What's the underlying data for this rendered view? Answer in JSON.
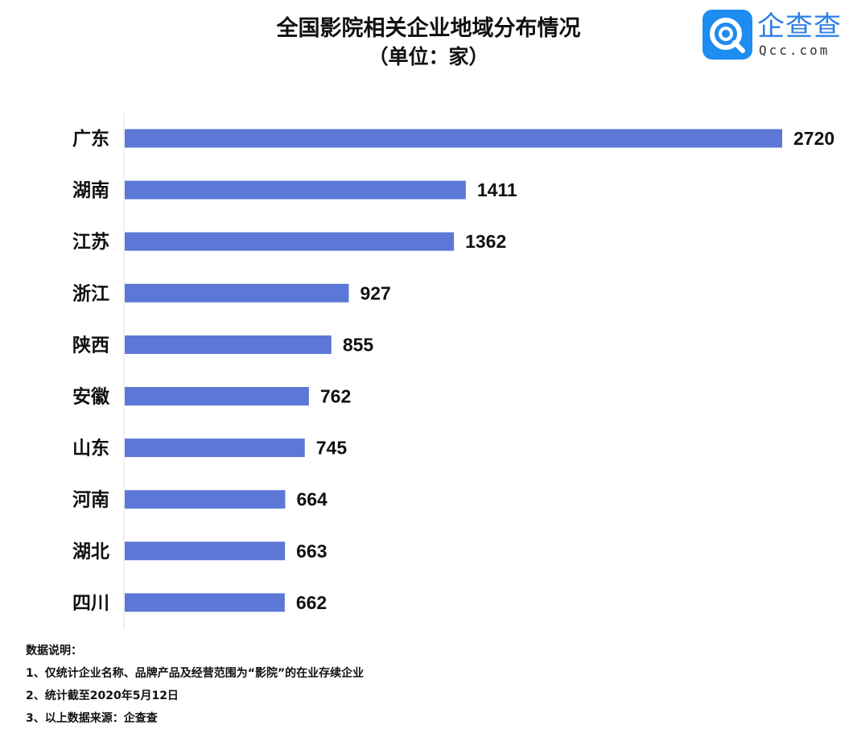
{
  "title": "全国影院相关企业地域分布情况",
  "subtitle": "（单位：家）",
  "logo": {
    "text": "企查查",
    "domain": "Qcc.com",
    "brand_color": "#1e8cf0"
  },
  "chart_data": {
    "type": "bar",
    "orientation": "horizontal",
    "title": "全国影院相关企业地域分布情况",
    "subtitle": "（单位：家）",
    "categories": [
      "广东",
      "湖南",
      "江苏",
      "浙江",
      "陕西",
      "安徽",
      "山东",
      "河南",
      "湖北",
      "四川"
    ],
    "values": [
      2720,
      1411,
      1362,
      927,
      855,
      762,
      745,
      664,
      663,
      662
    ],
    "xlim": [
      0,
      2720
    ],
    "bar_color": "#5b78d7",
    "data_labels": true,
    "grid": false
  },
  "notes": {
    "heading": "数据说明：",
    "items": [
      "1、仅统计企业名称、品牌产品及经营范围为“影院”的在业存续企业",
      "2、统计截至2020年5月12日",
      "3、以上数据来源：企查查"
    ]
  }
}
